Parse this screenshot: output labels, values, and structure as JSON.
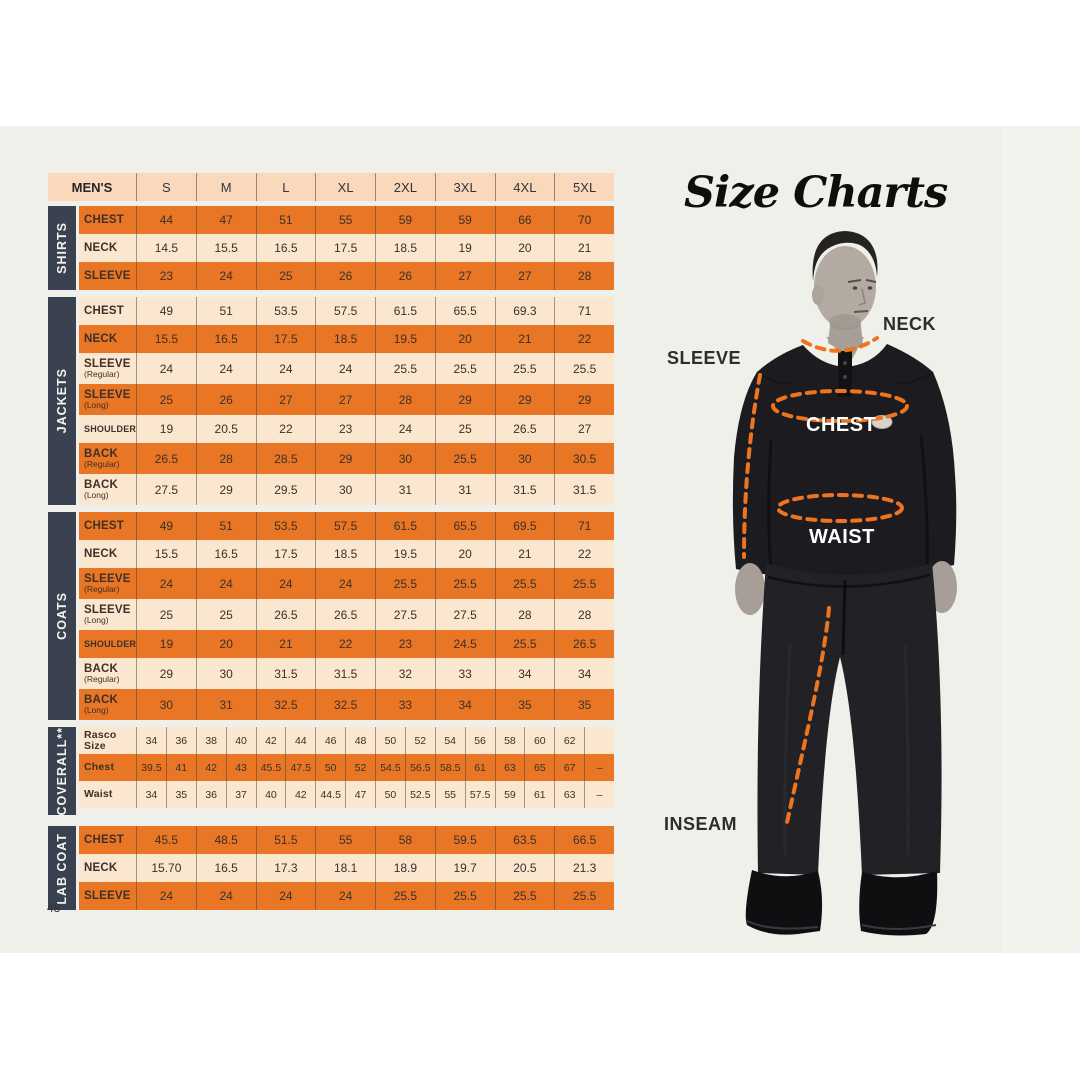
{
  "page": {
    "title": "Size Charts",
    "number": "48"
  },
  "table": {
    "header": {
      "corner": "MEN'S",
      "sizes": [
        "S",
        "M",
        "L",
        "XL",
        "2XL",
        "3XL",
        "4XL",
        "5XL"
      ]
    },
    "sections": [
      {
        "name": "SHIRTS",
        "rows": [
          {
            "label": "CHEST",
            "shade": "orange",
            "values": [
              "44",
              "47",
              "51",
              "55",
              "59",
              "59",
              "66",
              "70"
            ]
          },
          {
            "label": "NECK",
            "shade": "peach",
            "values": [
              "14.5",
              "15.5",
              "16.5",
              "17.5",
              "18.5",
              "19",
              "20",
              "21"
            ]
          },
          {
            "label": "SLEEVE",
            "shade": "orange",
            "values": [
              "23",
              "24",
              "25",
              "26",
              "26",
              "27",
              "27",
              "28"
            ]
          }
        ]
      },
      {
        "name": "JACKETS",
        "rows": [
          {
            "label": "CHEST",
            "shade": "peach",
            "values": [
              "49",
              "51",
              "53.5",
              "57.5",
              "61.5",
              "65.5",
              "69.3",
              "71"
            ]
          },
          {
            "label": "NECK",
            "shade": "orange",
            "values": [
              "15.5",
              "16.5",
              "17.5",
              "18.5",
              "19.5",
              "20",
              "21",
              "22"
            ]
          },
          {
            "label": "SLEEVE",
            "sub": "(Regular)",
            "shade": "peach",
            "values": [
              "24",
              "24",
              "24",
              "24",
              "25.5",
              "25.5",
              "25.5",
              "25.5"
            ]
          },
          {
            "label": "SLEEVE",
            "sub": "(Long)",
            "shade": "orange",
            "values": [
              "25",
              "26",
              "27",
              "27",
              "28",
              "29",
              "29",
              "29"
            ]
          },
          {
            "label": "SHOULDER",
            "shade": "peach",
            "values": [
              "19",
              "20.5",
              "22",
              "23",
              "24",
              "25",
              "26.5",
              "27"
            ]
          },
          {
            "label": "BACK",
            "sub": "(Regular)",
            "shade": "orange",
            "values": [
              "26.5",
              "28",
              "28.5",
              "29",
              "30",
              "25.5",
              "30",
              "30.5"
            ]
          },
          {
            "label": "BACK",
            "sub": "(Long)",
            "shade": "peach",
            "values": [
              "27.5",
              "29",
              "29.5",
              "30",
              "31",
              "31",
              "31.5",
              "31.5"
            ]
          }
        ]
      },
      {
        "name": "COATS",
        "rows": [
          {
            "label": "CHEST",
            "shade": "orange",
            "values": [
              "49",
              "51",
              "53.5",
              "57.5",
              "61.5",
              "65.5",
              "69.5",
              "71"
            ]
          },
          {
            "label": "NECK",
            "shade": "peach",
            "values": [
              "15.5",
              "16.5",
              "17.5",
              "18.5",
              "19.5",
              "20",
              "21",
              "22"
            ]
          },
          {
            "label": "SLEEVE",
            "sub": "(Regular)",
            "shade": "orange",
            "values": [
              "24",
              "24",
              "24",
              "24",
              "25.5",
              "25.5",
              "25.5",
              "25.5"
            ]
          },
          {
            "label": "SLEEVE",
            "sub": "(Long)",
            "shade": "peach",
            "values": [
              "25",
              "25",
              "26.5",
              "26.5",
              "27.5",
              "27.5",
              "28",
              "28"
            ]
          },
          {
            "label": "SHOULDER",
            "shade": "orange",
            "values": [
              "19",
              "20",
              "21",
              "22",
              "23",
              "24.5",
              "25.5",
              "26.5"
            ]
          },
          {
            "label": "BACK",
            "sub": "(Regular)",
            "shade": "peach",
            "values": [
              "29",
              "30",
              "31.5",
              "31.5",
              "32",
              "33",
              "34",
              "34"
            ]
          },
          {
            "label": "BACK",
            "sub": "(Long)",
            "shade": "orange",
            "values": [
              "30",
              "31",
              "32.5",
              "32.5",
              "33",
              "34",
              "35",
              "35"
            ]
          }
        ]
      },
      {
        "name": "COVERALL**",
        "rows": [
          {
            "label": "Rasco Size",
            "shade": "peach",
            "values": [
              "34",
              "36",
              "38",
              "40",
              "42",
              "44",
              "46",
              "48",
              "50",
              "52",
              "54",
              "56",
              "58",
              "60",
              "62",
              ""
            ]
          },
          {
            "label": "Chest",
            "shade": "orange",
            "values": [
              "39.5",
              "41",
              "42",
              "43",
              "45.5",
              "47.5",
              "50",
              "52",
              "54.5",
              "56.5",
              "58.5",
              "61",
              "63",
              "65",
              "67",
              "–"
            ]
          },
          {
            "label": "Waist",
            "shade": "peach",
            "values": [
              "34",
              "35",
              "36",
              "37",
              "40",
              "42",
              "44.5",
              "47",
              "50",
              "52.5",
              "55",
              "57.5",
              "59",
              "61",
              "63",
              "–"
            ]
          }
        ]
      },
      {
        "name": "LAB COAT",
        "rows": [
          {
            "label": "CHEST",
            "shade": "orange",
            "values": [
              "45.5",
              "48.5",
              "51.5",
              "55",
              "58",
              "59.5",
              "63.5",
              "66.5"
            ]
          },
          {
            "label": "NECK",
            "shade": "peach",
            "values": [
              "15.70",
              "16.5",
              "17.3",
              "18.1",
              "18.9",
              "19.7",
              "20.5",
              "21.3"
            ]
          },
          {
            "label": "SLEEVE",
            "shade": "orange",
            "values": [
              "24",
              "24",
              "24",
              "24",
              "25.5",
              "25.5",
              "25.5",
              "25.5"
            ]
          }
        ]
      }
    ]
  },
  "figure": {
    "labels": {
      "neck": "NECK",
      "sleeve": "SLEEVE",
      "chest": "CHEST",
      "waist": "WAIST",
      "inseam": "INSEAM"
    }
  },
  "colors": {
    "orange_row": "#e87624",
    "peach_header": "#fad8bb",
    "peach_row": "#fbe6d0",
    "navy_section_bar": "#3a4150",
    "page_background": "#eff0ea",
    "dash_orange": "#ee7420"
  }
}
